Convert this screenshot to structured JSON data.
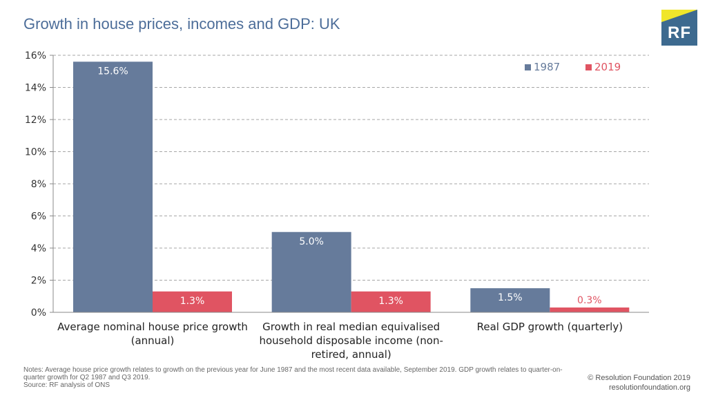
{
  "title": "Growth in house prices, incomes and GDP: UK",
  "logo": {
    "text": "RF",
    "bg_color": "#3d6a8f",
    "accent_color": "#f0e62a"
  },
  "chart_data": {
    "type": "bar",
    "categories": [
      [
        "Average nominal house price growth",
        "(annual)"
      ],
      [
        "Growth in real median equivalised",
        "household disposable income (non-",
        "retired, annual)"
      ],
      [
        "Real GDP growth (quarterly)"
      ]
    ],
    "series": [
      {
        "name": "1987",
        "values": [
          15.6,
          5.0,
          1.5
        ],
        "labels": [
          "15.6%",
          "5.0%",
          "1.5%"
        ],
        "color": "#667b9b",
        "label_color": "#ffffff"
      },
      {
        "name": "2019",
        "values": [
          1.3,
          1.3,
          0.3
        ],
        "labels": [
          "1.3%",
          "1.3%",
          "0.3%"
        ],
        "color": "#e05462",
        "label_color": "#ffffff"
      }
    ],
    "ylim": [
      0,
      16
    ],
    "yticks": [
      0,
      2,
      4,
      6,
      8,
      10,
      12,
      14,
      16
    ],
    "ytick_labels": [
      "0%",
      "2%",
      "4%",
      "6%",
      "8%",
      "10%",
      "12%",
      "14%",
      "16%"
    ],
    "legend_position": "top-right",
    "grid": true
  },
  "notes": "Notes: Average house price growth relates to growth on the previous year for June 1987 and the most recent data available, September 2019. GDP growth relates to quarter-on-quarter growth for Q2 1987 and Q3 2019.",
  "source": "Source: RF analysis of ONS",
  "copyright": "© Resolution Foundation 2019",
  "website": "resolutionfoundation.org"
}
